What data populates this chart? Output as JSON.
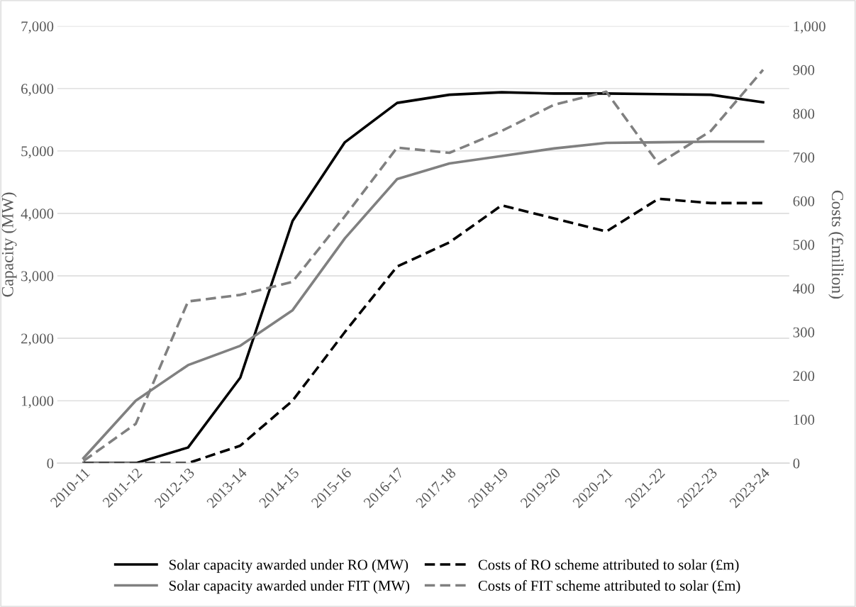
{
  "chart_data": {
    "type": "line",
    "ylabel": "Capacity (MW)",
    "y2label": "Costs (£million)",
    "categories": [
      "2010-11",
      "2011-12",
      "2012-13",
      "2013-14",
      "2014-15",
      "2015-16",
      "2016-17",
      "2017-18",
      "2018-19",
      "2019-20",
      "2020-21",
      "2021-22",
      "2022-23",
      "2023-24"
    ],
    "series": [
      {
        "name": "Solar capacity awarded under RO (MW)",
        "color": "#000000",
        "line_style": "solid",
        "values": [
          0,
          0,
          250,
          1370,
          3880,
          5140,
          5770,
          5900,
          5940,
          5920,
          5920,
          5910,
          5900,
          5780
        ]
      },
      {
        "name": "Solar capacity awarded under FIT (MW)",
        "color": "#808080",
        "line_style": "solid",
        "values": [
          80,
          1000,
          1570,
          1880,
          2450,
          3600,
          4550,
          4800,
          4920,
          5040,
          5130,
          5140,
          5150,
          5150
        ]
      },
      {
        "name": "Costs of RO scheme attributed to solar (£m)",
        "color": "#000000",
        "line_style": "dashed",
        "axis": "y2",
        "values": [
          0,
          0,
          0,
          40,
          143,
          300,
          450,
          505,
          590,
          560,
          530,
          605,
          595,
          595
        ]
      },
      {
        "name": "Costs of FIT scheme attributed to solar (£m)",
        "color": "#808080",
        "line_style": "dashed",
        "axis": "y2",
        "values": [
          5,
          90,
          370,
          385,
          415,
          565,
          722,
          710,
          760,
          820,
          850,
          685,
          760,
          900
        ]
      }
    ],
    "ylim": [
      0,
      7000
    ],
    "yticks": [
      {
        "value": 0,
        "label": "0"
      },
      {
        "value": 1000,
        "label": "1,000"
      },
      {
        "value": 2000,
        "label": "2,000"
      },
      {
        "value": 3000,
        "label": "3,000"
      },
      {
        "value": 4000,
        "label": "4,000"
      },
      {
        "value": 5000,
        "label": "5,000"
      },
      {
        "value": 6000,
        "label": "6,000"
      },
      {
        "value": 7000,
        "label": "7,000"
      }
    ],
    "y2lim": [
      0,
      1000
    ],
    "y2ticks": [
      0,
      100,
      200,
      300,
      400,
      500,
      600,
      700,
      800,
      900,
      {
        "value": 1000,
        "label": "1,000"
      }
    ],
    "grid": "y",
    "legend": "bottom"
  }
}
